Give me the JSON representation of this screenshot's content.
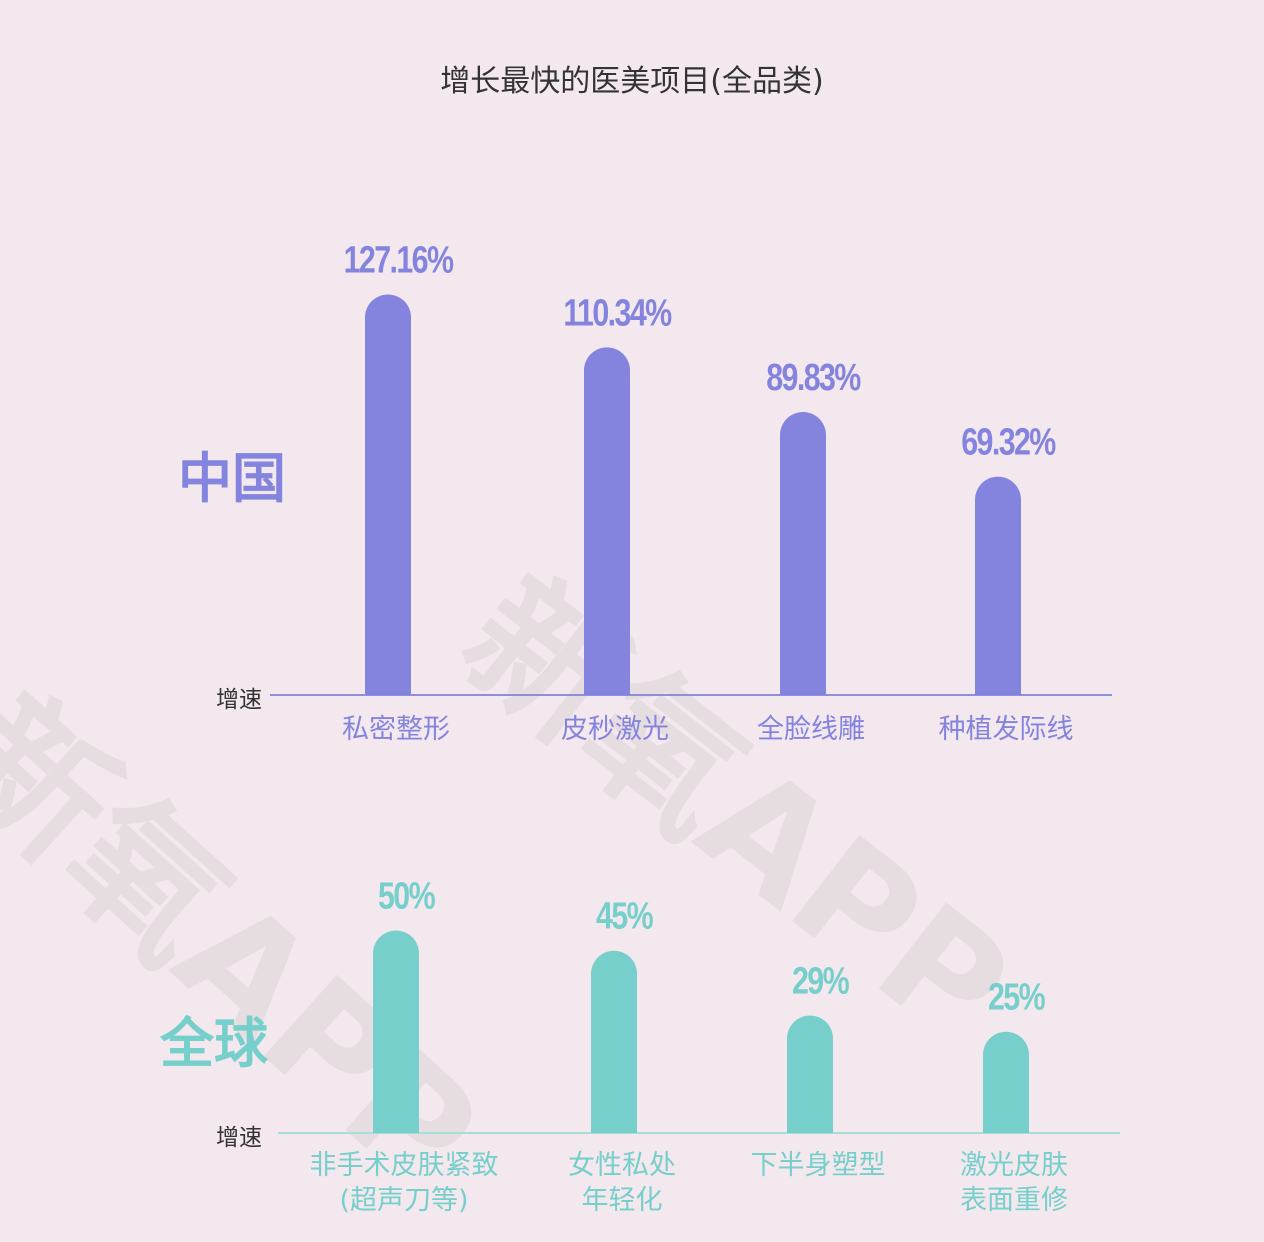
{
  "title": "增长最快的医美项目(全品类)",
  "watermark": "新氧APP",
  "chart_data": [
    {
      "type": "bar",
      "region": "中国",
      "axis_label": "增速",
      "color": "#8484de",
      "categories": [
        "私密整形",
        "皮秒激光",
        "全脸线雕",
        "种植发际线"
      ],
      "values": [
        127.16,
        110.34,
        89.83,
        69.32
      ],
      "value_labels": [
        "127.16%",
        "110.34%",
        "89.83%",
        "69.32%"
      ]
    },
    {
      "type": "bar",
      "region": "全球",
      "axis_label": "增速",
      "color": "#76cfcb",
      "categories": [
        "非手术皮肤紧致\n(超声刀等)",
        "女性私处\n年轻化",
        "下半身塑型",
        "激光皮肤\n表面重修"
      ],
      "values": [
        50,
        45,
        29,
        25
      ],
      "value_labels": [
        "50%",
        "45%",
        "29%",
        "25%"
      ]
    }
  ]
}
